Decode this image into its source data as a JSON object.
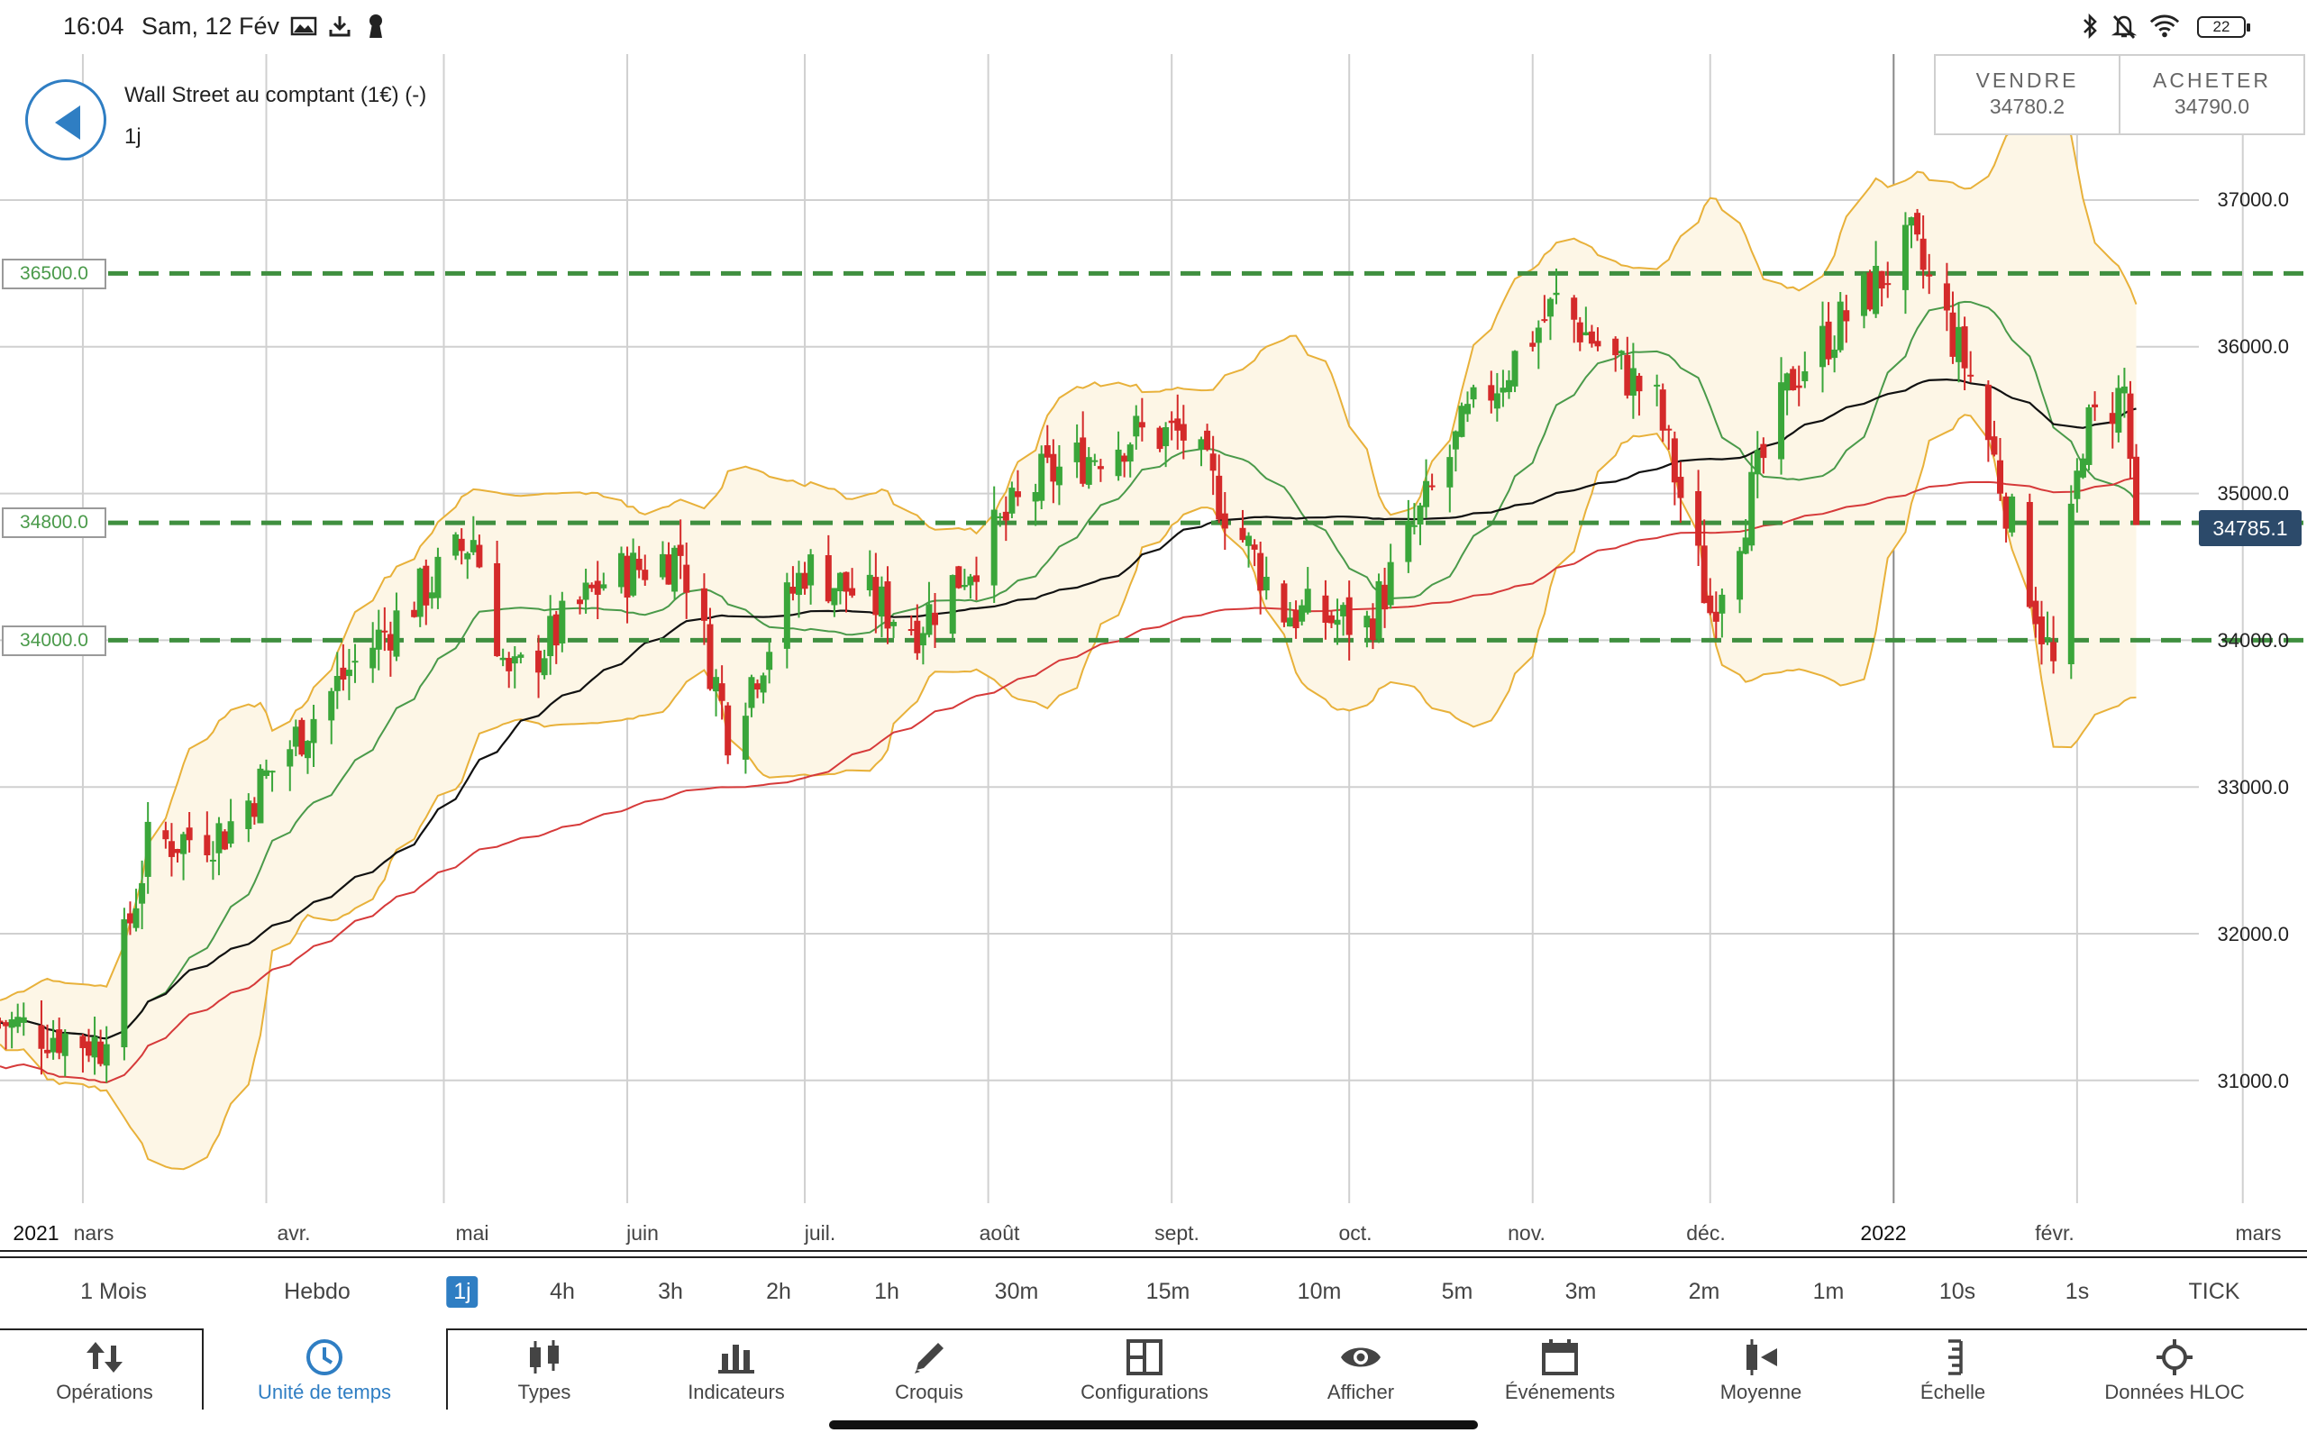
{
  "status_bar": {
    "time": "16:04",
    "date": "Sam, 12 Fév",
    "battery": "22",
    "icons": [
      "photo-icon",
      "download-icon",
      "keyhole-icon",
      "bluetooth-icon",
      "bell-off-icon",
      "wifi-icon",
      "battery-icon"
    ]
  },
  "header": {
    "instrument": "Wall Street au comptant (1€) (-)",
    "timeframe": "1j"
  },
  "trade": {
    "sell_label": "VENDRE",
    "sell_price": "34780.2",
    "buy_label": "ACHETER",
    "buy_price": "34790.0"
  },
  "chart": {
    "level_lines": [
      "36500.0",
      "34800.0",
      "34000.0"
    ],
    "current_price": "34785.1",
    "y_ticks": [
      "37000.0",
      "36000.0",
      "35000.0",
      "34000.0",
      "33000.0",
      "32000.0",
      "31000.0"
    ],
    "x_ticks": [
      "2021",
      "nars",
      "avr.",
      "mai",
      "juin",
      "juil.",
      "août",
      "sept.",
      "oct.",
      "nov.",
      "déc.",
      "2022",
      "févr.",
      "mars"
    ],
    "colors": {
      "up": "#3aa63a",
      "down": "#d42a2a",
      "bollinger": "#e8b13a",
      "ma_fast": "#4a9a4a",
      "ma_mid": "#111111",
      "ma_slow": "#d63a3a",
      "level": "#3f8f3f",
      "accent": "#2f7ec3"
    }
  },
  "chart_data": {
    "type": "candlestick",
    "title": "",
    "xlabel": "",
    "ylabel": "",
    "ylim": [
      29800,
      37900
    ],
    "x_range": [
      "2021-02-15",
      "2022-03-05"
    ],
    "log_scale": false,
    "grid": true,
    "levels": [
      36500,
      34800,
      34000
    ],
    "last_price": 34785.1,
    "anchors": [
      {
        "date": "2021-02-15",
        "price": 31400
      },
      {
        "date": "2021-03-04",
        "price": 31250
      },
      {
        "date": "2021-03-12",
        "price": 32600
      },
      {
        "date": "2021-03-25",
        "price": 32700
      },
      {
        "date": "2021-04-15",
        "price": 33800
      },
      {
        "date": "2021-05-06",
        "price": 34700
      },
      {
        "date": "2021-05-12",
        "price": 33700
      },
      {
        "date": "2021-05-28",
        "price": 34400
      },
      {
        "date": "2021-06-10",
        "price": 34600
      },
      {
        "date": "2021-06-18",
        "price": 33400
      },
      {
        "date": "2021-07-01",
        "price": 34500
      },
      {
        "date": "2021-07-20",
        "price": 34100
      },
      {
        "date": "2021-08-10",
        "price": 35100
      },
      {
        "date": "2021-08-25",
        "price": 35400
      },
      {
        "date": "2021-09-03",
        "price": 35400
      },
      {
        "date": "2021-09-20",
        "price": 34200
      },
      {
        "date": "2021-10-04",
        "price": 34100
      },
      {
        "date": "2021-10-21",
        "price": 35500
      },
      {
        "date": "2021-11-05",
        "price": 36300
      },
      {
        "date": "2021-11-22",
        "price": 35600
      },
      {
        "date": "2021-12-01",
        "price": 34200
      },
      {
        "date": "2021-12-15",
        "price": 35800
      },
      {
        "date": "2022-01-04",
        "price": 36700
      },
      {
        "date": "2022-01-14",
        "price": 35800
      },
      {
        "date": "2022-01-28",
        "price": 33800
      },
      {
        "date": "2022-02-02",
        "price": 35400
      },
      {
        "date": "2022-02-09",
        "price": 35700
      },
      {
        "date": "2022-02-11",
        "price": 34785
      }
    ]
  },
  "timeframes": {
    "items": [
      "1 Mois",
      "Hebdo",
      "1j",
      "4h",
      "3h",
      "2h",
      "1h",
      "30m",
      "15m",
      "10m",
      "5m",
      "3m",
      "2m",
      "1m",
      "10s",
      "1s",
      "TICK"
    ],
    "active": "1j"
  },
  "toolbar": {
    "items": [
      {
        "label": "Opérations",
        "icon": "up-down-arrows-icon"
      },
      {
        "label": "Unité de temps",
        "icon": "clock-icon"
      },
      {
        "label": "Types",
        "icon": "candlestick-icon"
      },
      {
        "label": "Indicateurs",
        "icon": "bar-chart-icon"
      },
      {
        "label": "Croquis",
        "icon": "pencil-icon"
      },
      {
        "label": "Configurations",
        "icon": "layout-icon"
      },
      {
        "label": "Afficher",
        "icon": "eye-icon"
      },
      {
        "label": "Événements",
        "icon": "calendar-icon"
      },
      {
        "label": "Moyenne",
        "icon": "moving-average-icon"
      },
      {
        "label": "Échelle",
        "icon": "scale-icon"
      },
      {
        "label": "Données HLOC",
        "icon": "crosshair-icon"
      }
    ],
    "active": "Unité de temps"
  }
}
